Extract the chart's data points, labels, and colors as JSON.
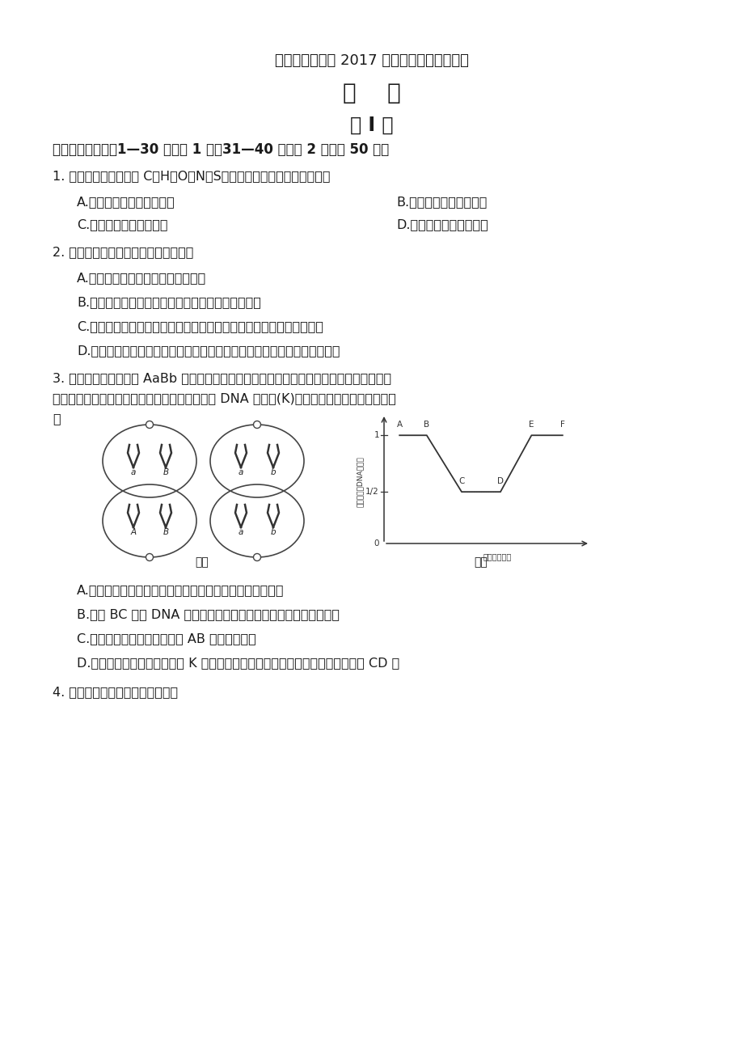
{
  "bg_color": "#ffffff",
  "title1": "成都外国语学校 2017 届高二（下）期末考试",
  "title2": "生    物",
  "title3": "第 I 卷",
  "section1": "一、单项选择题（1—30 题每题 1 分，31—40 题每题 2 分，共 50 分）",
  "q1": "1. 经测定，某化合物含 C、H、O、N、S，下列哪项最不可能是它的功能",
  "q1a": "A.把氨基酸运送到核糖体上",
  "q1b": "B.与抗原发生特异性结合",
  "q1c": "C.运载葡萄糖进入红细胞",
  "q1d": "D.催化细胞内的化学反应",
  "q2": "2. 下列有关细胞结构的叙述，正确的是",
  "q2a": "A.核仁是与核糖体形成有关的细胞器",
  "q2b": "B.线粒体不参与卵原细胞转化为初级卵母细胞的过程",
  "q2c": "C.神经细胞轴突末梢有大量突起，有利于附着更多的神经递质受体蛋白",
  "q2d": "D.洋葱的根尖细胞中无叶绿体，但用根尖细胞可以培养出含叶绿体的植物体",
  "q3_text1": "3. 图甲是一个基因型为 AaBb 的精原细胞在减数分裂过程中产生的两个次级精母细胞，图乙",
  "q3_text2": "表示有丝分裂和减数分裂不同时期的染色体与核 DNA 数目比(K)的变化关系。下列说法正确的",
  "q3_text3": "是",
  "q3_caption_jia": "图甲",
  "q3_caption_yi": "图乙",
  "q3a": "A.图甲细胞所示的变异类型均发生在减数第二次分裂的后期",
  "q3b": "B.图乙 BC 段中 DNA 稳定性较差，易出现碱基对增添、缺失或改变",
  "q3c": "C.图甲中左图细胞对应图乙的 AB 段的某一时期",
  "q3d": "D.若图乙表示有丝分裂过程中 K 的变化，则纺锤体、染色体和细胞板都可出现在 CD 段",
  "q4": "4. 下列有关育种的叙述，错误的是"
}
